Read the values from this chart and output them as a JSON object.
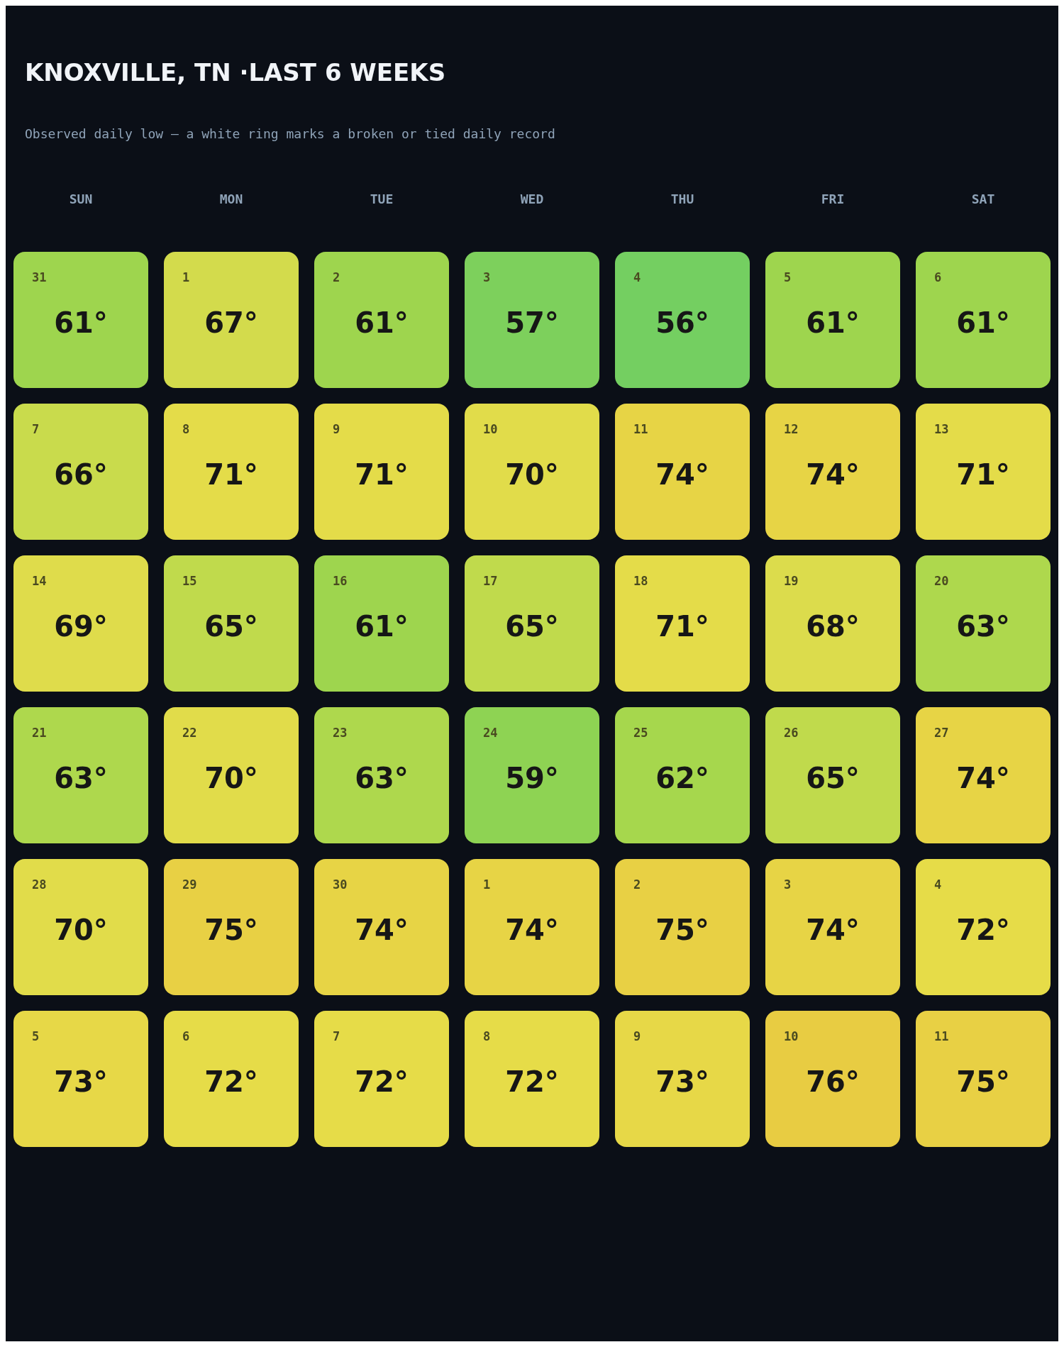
{
  "chart_data": {
    "type": "heatmap",
    "title": "KNOXVILLE, TN ·LAST 6 WEEKS",
    "subtitle": "Observed daily low — a white ring marks a broken or tied daily record",
    "categories": [
      "SUN",
      "MON",
      "TUE",
      "WED",
      "THU",
      "FRI",
      "SAT"
    ],
    "y_categories": [
      null,
      null,
      null,
      null,
      null,
      null
    ],
    "cells": [
      [
        61,
        67,
        61,
        57,
        56,
        61,
        61
      ],
      [
        66,
        71,
        71,
        70,
        74,
        74,
        71
      ],
      [
        69,
        65,
        61,
        65,
        71,
        68,
        63
      ],
      [
        63,
        70,
        63,
        59,
        62,
        65,
        74
      ],
      [
        70,
        75,
        74,
        74,
        75,
        74,
        72
      ],
      [
        73,
        72,
        72,
        72,
        73,
        76,
        75
      ]
    ],
    "cell_labels": [
      [
        "61°",
        "67°",
        "61°",
        "57°",
        "56°",
        "61°",
        "61°"
      ],
      [
        "66°",
        "71°",
        "71°",
        "70°",
        "74°",
        "74°",
        "71°"
      ],
      [
        "69°",
        "65°",
        "61°",
        "65°",
        "71°",
        "68°",
        "63°"
      ],
      [
        "63°",
        "70°",
        "63°",
        "59°",
        "62°",
        "65°",
        "74°"
      ],
      [
        "70°",
        "75°",
        "74°",
        "74°",
        "75°",
        "74°",
        "72°"
      ],
      [
        "73°",
        "72°",
        "72°",
        "72°",
        "73°",
        "76°",
        "75°"
      ]
    ],
    "annotations": [
      "31",
      "1",
      "2",
      "3",
      "4",
      "5",
      "6",
      "7",
      "8",
      "9",
      "10",
      "11",
      "12",
      "13",
      "14",
      "15",
      "16",
      "17",
      "18",
      "19",
      "20",
      "21",
      "22",
      "23",
      "24",
      "25",
      "26",
      "27",
      "28",
      "29",
      "30",
      "1",
      "2",
      "3",
      "4",
      "5",
      "6",
      "7",
      "8",
      "9",
      "10",
      "11"
    ],
    "tick_labels": "x"
  }
}
